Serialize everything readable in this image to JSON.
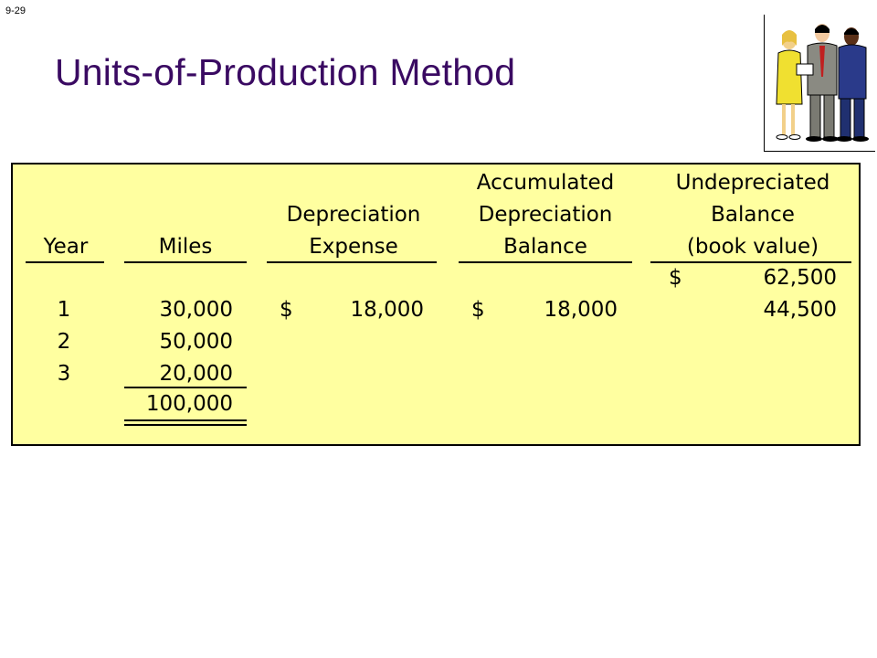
{
  "slide_number": "9-29",
  "title": "Units-of-Production Method",
  "clipart": "business-people-clipart",
  "table": {
    "headers": {
      "year": [
        "Year"
      ],
      "miles": [
        "Miles"
      ],
      "dep_expense": [
        "Depreciation",
        "Expense"
      ],
      "accum_dep": [
        "Accumulated",
        "Depreciation",
        "Balance"
      ],
      "undep": [
        "Undepreciated",
        "Balance",
        "(book value)"
      ]
    },
    "opening_dollar": "$",
    "opening_balance": "62,500",
    "rows": [
      {
        "year": "1",
        "miles": "30,000",
        "dep_dollar": "$",
        "dep_expense": "18,000",
        "accum_dollar": "$",
        "accum_balance": "18,000",
        "book_value": "44,500"
      },
      {
        "year": "2",
        "miles": "50,000",
        "dep_dollar": "",
        "dep_expense": "",
        "accum_dollar": "",
        "accum_balance": "",
        "book_value": ""
      },
      {
        "year": "3",
        "miles": "20,000",
        "dep_dollar": "",
        "dep_expense": "",
        "accum_dollar": "",
        "accum_balance": "",
        "book_value": ""
      }
    ],
    "total_miles": "100,000"
  },
  "colors": {
    "title": "#3a0a62",
    "panel_bg": "#ffffa0"
  }
}
